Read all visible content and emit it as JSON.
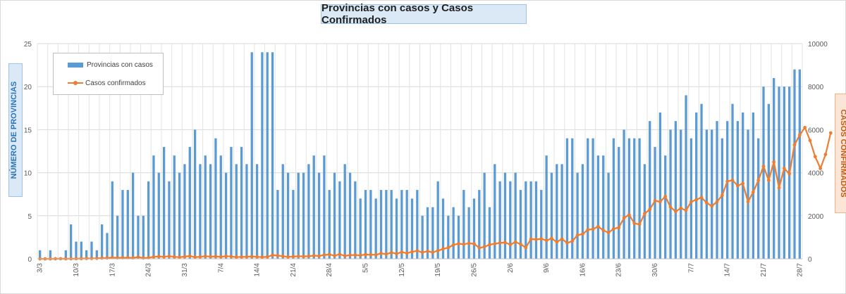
{
  "chart_data": {
    "type": "bar+line",
    "title": "Provincias con casos y Casos Confirmados",
    "ylabel_left": "NÚMERO DE PROVINCIAS",
    "ylabel_right": "CASOS CONFIRMADOS",
    "ylim_left": [
      0,
      25
    ],
    "ylim_right": [
      0,
      10000
    ],
    "yticks_left": [
      "0",
      "5",
      "10",
      "15",
      "20",
      "25"
    ],
    "yticks_right": [
      "0",
      "2000",
      "4000",
      "6000",
      "8000",
      "10000"
    ],
    "xtick_labels": [
      "3/3",
      "10/3",
      "17/3",
      "24/3",
      "31/3",
      "7/4",
      "14/4",
      "21/4",
      "28/4",
      "5/5",
      "12/5",
      "19/5",
      "26/5",
      "2/6",
      "9/6",
      "16/6",
      "23/6",
      "30/6",
      "7/7",
      "14/7",
      "21/7",
      "28/7"
    ],
    "grid": true,
    "legend_position": "top-left",
    "series": [
      {
        "name": "Provincias con casos",
        "kind": "bar",
        "axis": "left",
        "color": "#5b9bd5",
        "values": [
          1,
          0,
          1,
          0,
          0,
          1,
          4,
          2,
          2,
          1,
          2,
          1,
          4,
          3,
          9,
          5,
          8,
          8,
          10,
          5,
          5,
          9,
          12,
          10,
          13,
          9,
          12,
          10,
          11,
          13,
          15,
          11,
          12,
          11,
          14,
          12,
          10,
          13,
          11,
          13,
          11,
          24,
          11,
          24,
          24,
          24,
          8,
          11,
          10,
          8,
          10,
          10,
          11,
          12,
          10,
          12,
          8,
          10,
          9,
          11,
          10,
          9,
          7,
          8,
          8,
          7,
          8,
          8,
          8,
          7,
          8,
          8,
          7,
          8,
          5,
          6,
          6,
          9,
          7,
          5,
          6,
          5,
          8,
          6,
          7,
          8,
          10,
          6,
          11,
          9,
          10,
          9,
          10,
          8,
          9,
          9,
          9,
          8,
          12,
          10,
          11,
          11,
          14,
          14,
          10,
          11,
          14,
          14,
          12,
          12,
          10,
          14,
          13,
          15,
          14,
          14,
          14,
          11,
          16,
          13,
          17,
          12,
          15,
          16,
          15,
          19,
          14,
          17,
          18,
          15,
          15,
          16,
          14,
          16,
          18,
          16,
          17,
          15,
          17,
          14,
          20,
          18,
          21,
          20,
          20,
          20,
          22,
          22
        ]
      },
      {
        "name": "Casos confirmados",
        "kind": "line",
        "axis": "right",
        "color": "#ed7d31",
        "values": [
          1,
          0,
          0,
          3,
          5,
          3,
          3,
          8,
          12,
          17,
          17,
          23,
          34,
          40,
          60,
          46,
          50,
          55,
          45,
          80,
          40,
          50,
          90,
          110,
          95,
          120,
          90,
          75,
          100,
          130,
          80,
          95,
          120,
          100,
          110,
          95,
          120,
          110,
          80,
          90,
          95,
          110,
          90,
          80,
          95,
          170,
          150,
          120,
          90,
          100,
          120,
          110,
          120,
          150,
          130,
          180,
          200,
          150,
          210,
          140,
          170,
          180,
          160,
          200,
          190,
          190,
          250,
          220,
          290,
          240,
          310,
          260,
          330,
          370,
          300,
          350,
          300,
          380,
          460,
          520,
          650,
          700,
          680,
          720,
          700,
          510,
          560,
          660,
          700,
          740,
          760,
          660,
          780,
          680,
          520,
          920,
          900,
          930,
          850,
          950,
          780,
          920,
          740,
          820,
          1100,
          1150,
          1350,
          1380,
          1500,
          1320,
          1220,
          1400,
          1450,
          1900,
          2050,
          1650,
          1600,
          2100,
          2300,
          2700,
          2650,
          2900,
          2400,
          2200,
          2350,
          2250,
          2650,
          2750,
          2850,
          2600,
          2450,
          2650,
          2950,
          3600,
          3650,
          3400,
          3500,
          2650,
          3100,
          3650,
          4300,
          3650,
          4500,
          3300,
          4200,
          3950,
          5300,
          5750,
          6100,
          5500,
          4750,
          4200,
          4850,
          5850
        ]
      }
    ]
  }
}
